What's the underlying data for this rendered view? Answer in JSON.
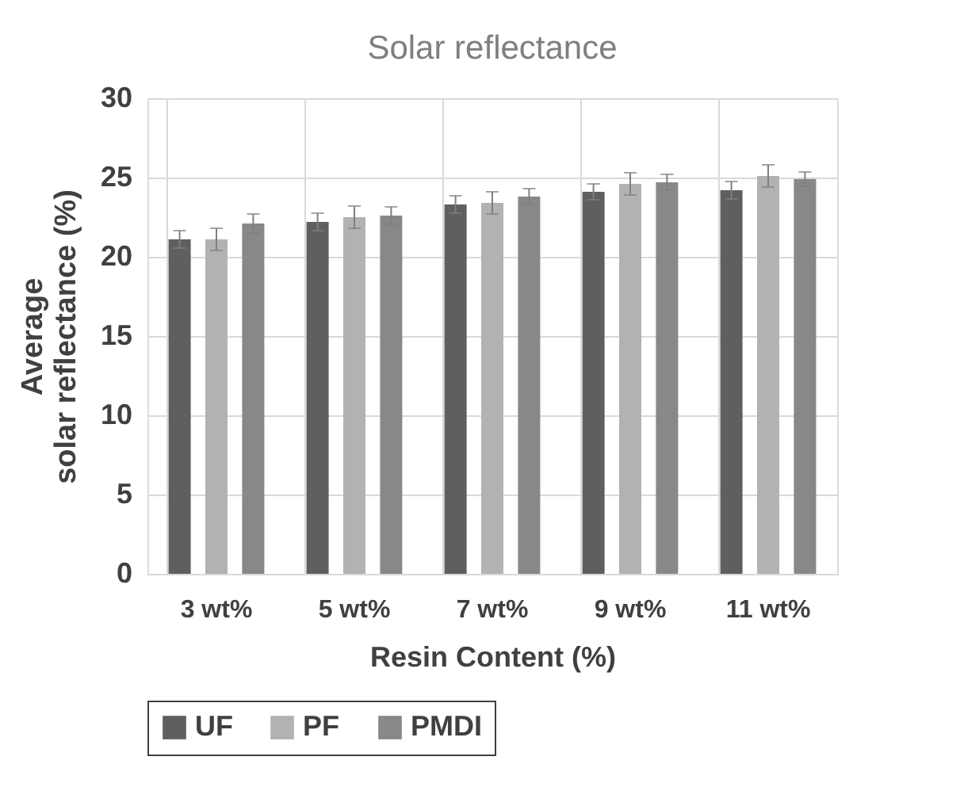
{
  "chart_data": {
    "type": "bar",
    "title": "Solar reflectance",
    "xlabel": "Resin Content (%)",
    "ylabel": "Average\nsolar reflectance (%)",
    "categories": [
      "3 wt%",
      "5 wt%",
      "7 wt%",
      "9 wt%",
      "11 wt%"
    ],
    "series": [
      {
        "name": "UF",
        "color": "#5f5f5f",
        "values": [
          21.1,
          22.2,
          23.3,
          24.1,
          24.2
        ],
        "errors": [
          0.55,
          0.55,
          0.55,
          0.5,
          0.55
        ]
      },
      {
        "name": "PF",
        "color": "#b2b2b2",
        "values": [
          21.1,
          22.5,
          23.4,
          24.6,
          25.1
        ],
        "errors": [
          0.7,
          0.7,
          0.7,
          0.7,
          0.7
        ]
      },
      {
        "name": "PMDI",
        "color": "#888888",
        "values": [
          22.1,
          22.6,
          23.8,
          24.7,
          24.9
        ],
        "errors": [
          0.6,
          0.55,
          0.5,
          0.5,
          0.45
        ]
      }
    ],
    "ylim": [
      0,
      30
    ],
    "yticks": [
      0,
      5,
      10,
      15,
      20,
      25,
      30
    ],
    "grid": true,
    "legend": "bottom"
  }
}
